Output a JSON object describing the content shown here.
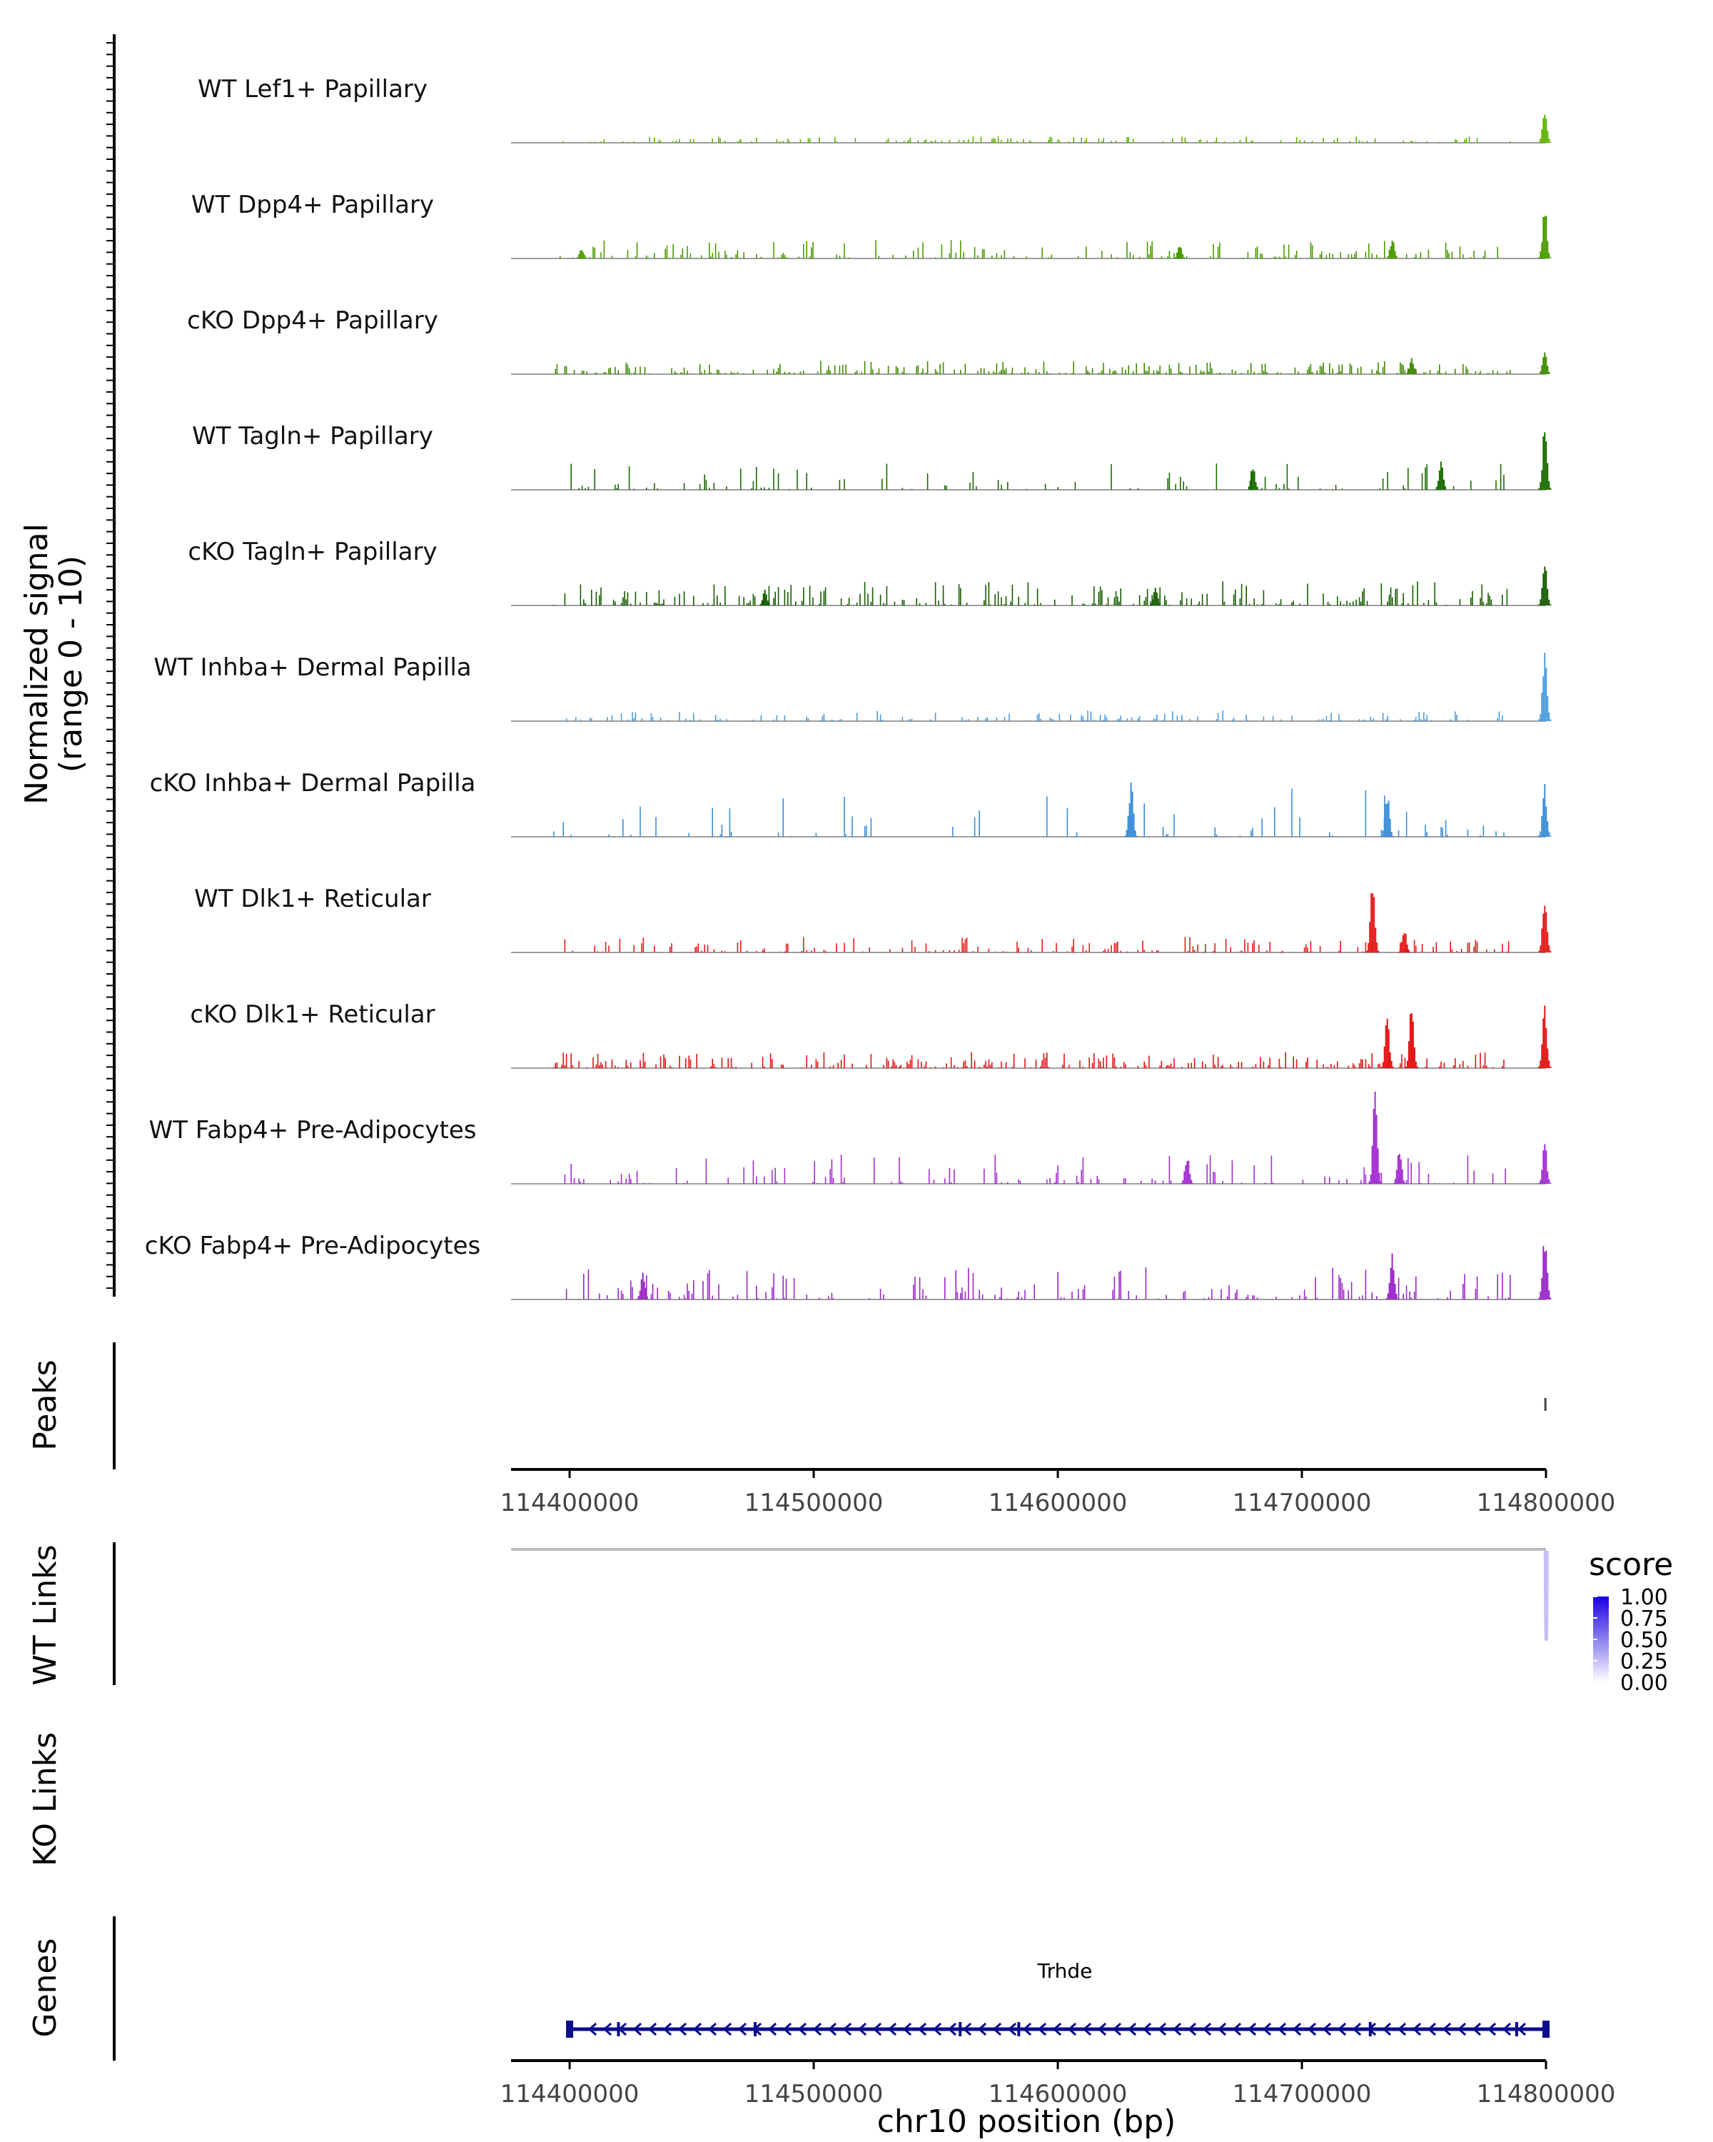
{
  "chart_data": {
    "type": "genome-coverage-tracks",
    "y_axis_label_line1": "Normalized signal",
    "y_axis_label_line2": "(range 0 - 10)",
    "xlabel": "chr10 position (bp)",
    "xlim": [
      114376000,
      114800000
    ],
    "x_ticks": [
      114400000,
      114500000,
      114600000,
      114700000,
      114800000
    ],
    "x_tick_labels": [
      "114400000",
      "114500000",
      "114600000",
      "114700000",
      "114800000"
    ],
    "y_range": [
      0,
      10
    ],
    "tracks": [
      {
        "name": "WT Lef1+ Papillary",
        "color": "#5cb300",
        "density": 0.45,
        "amp": 0.12,
        "hotspots": [
          [
            114799500,
            2.2
          ]
        ]
      },
      {
        "name": "WT Dpp4+ Papillary",
        "color": "#4a9a00",
        "density": 0.32,
        "amp": 0.35,
        "hotspots": [
          [
            114405000,
            0.6
          ],
          [
            114650000,
            0.8
          ],
          [
            114737000,
            1.2
          ],
          [
            114799500,
            3.0
          ]
        ]
      },
      {
        "name": "cKO Dpp4+ Papillary",
        "color": "#3f8a00",
        "density": 0.6,
        "amp": 0.25,
        "hotspots": [
          [
            114745000,
            0.9
          ],
          [
            114799500,
            1.3
          ]
        ]
      },
      {
        "name": "WT Tagln+ Papillary",
        "color": "#1a6b00",
        "density": 0.22,
        "amp": 0.5,
        "hotspots": [
          [
            114680000,
            1.4
          ],
          [
            114757000,
            1.6
          ],
          [
            114799500,
            3.8
          ]
        ]
      },
      {
        "name": "cKO Tagln+ Papillary",
        "color": "#165c00",
        "density": 0.5,
        "amp": 0.45,
        "hotspots": [
          [
            114480000,
            0.9
          ],
          [
            114640000,
            1.0
          ],
          [
            114799500,
            2.6
          ]
        ]
      },
      {
        "name": "WT Inhba+ Dermal Papilla",
        "color": "#4a9de0",
        "density": 0.35,
        "amp": 0.2,
        "hotspots": [
          [
            114799500,
            4.0
          ]
        ]
      },
      {
        "name": "cKO Inhba+ Dermal Papilla",
        "color": "#3a8ed8",
        "density": 0.15,
        "amp": 0.9,
        "hotspots": [
          [
            114630000,
            3.2
          ],
          [
            114735000,
            2.6
          ],
          [
            114799500,
            3.0
          ]
        ]
      },
      {
        "name": "WT Dlk1+ Reticular",
        "color": "#e51a1a",
        "density": 0.35,
        "amp": 0.3,
        "hotspots": [
          [
            114729000,
            4.6
          ],
          [
            114742000,
            1.5
          ],
          [
            114799500,
            3.5
          ]
        ]
      },
      {
        "name": "cKO Dlk1+ Reticular",
        "color": "#e21212",
        "density": 0.55,
        "amp": 0.3,
        "hotspots": [
          [
            114735000,
            3.0
          ],
          [
            114745000,
            3.8
          ],
          [
            114799500,
            3.8
          ]
        ]
      },
      {
        "name": "WT Fabp4+ Pre-Adipocytes",
        "color": "#a32fd1",
        "density": 0.25,
        "amp": 0.55,
        "hotspots": [
          [
            114653000,
            1.8
          ],
          [
            114730000,
            5.4
          ],
          [
            114740000,
            2.0
          ],
          [
            114799500,
            2.4
          ]
        ]
      },
      {
        "name": "cKO Fabp4+ Pre-Adipocytes",
        "color": "#9b27c9",
        "density": 0.32,
        "amp": 0.6,
        "hotspots": [
          [
            114430000,
            1.6
          ],
          [
            114737000,
            2.6
          ],
          [
            114799500,
            3.8
          ]
        ]
      }
    ],
    "peaks_label": "Peaks",
    "peaks": [
      {
        "start": 114799000,
        "end": 114800500
      }
    ],
    "wt_links_label": "WT Links",
    "ko_links_label": "KO Links",
    "wt_links": [
      {
        "start": 114799800,
        "end": 114800400,
        "score": 0.25
      }
    ],
    "ko_links": [],
    "legend": {
      "title": "score",
      "position": "right",
      "labels": [
        "1.00",
        "0.75",
        "0.50",
        "0.25",
        "0.00"
      ],
      "values": [
        1.0,
        0.75,
        0.5,
        0.25,
        0.0
      ],
      "color_low": "#ffffff",
      "color_high": "#1b00e0"
    },
    "genes_label": "Genes",
    "genes": [
      {
        "name": "Trhde",
        "start": 114400000,
        "end": 114800000,
        "strand": "-",
        "color": "#0a0a8c"
      }
    ]
  }
}
